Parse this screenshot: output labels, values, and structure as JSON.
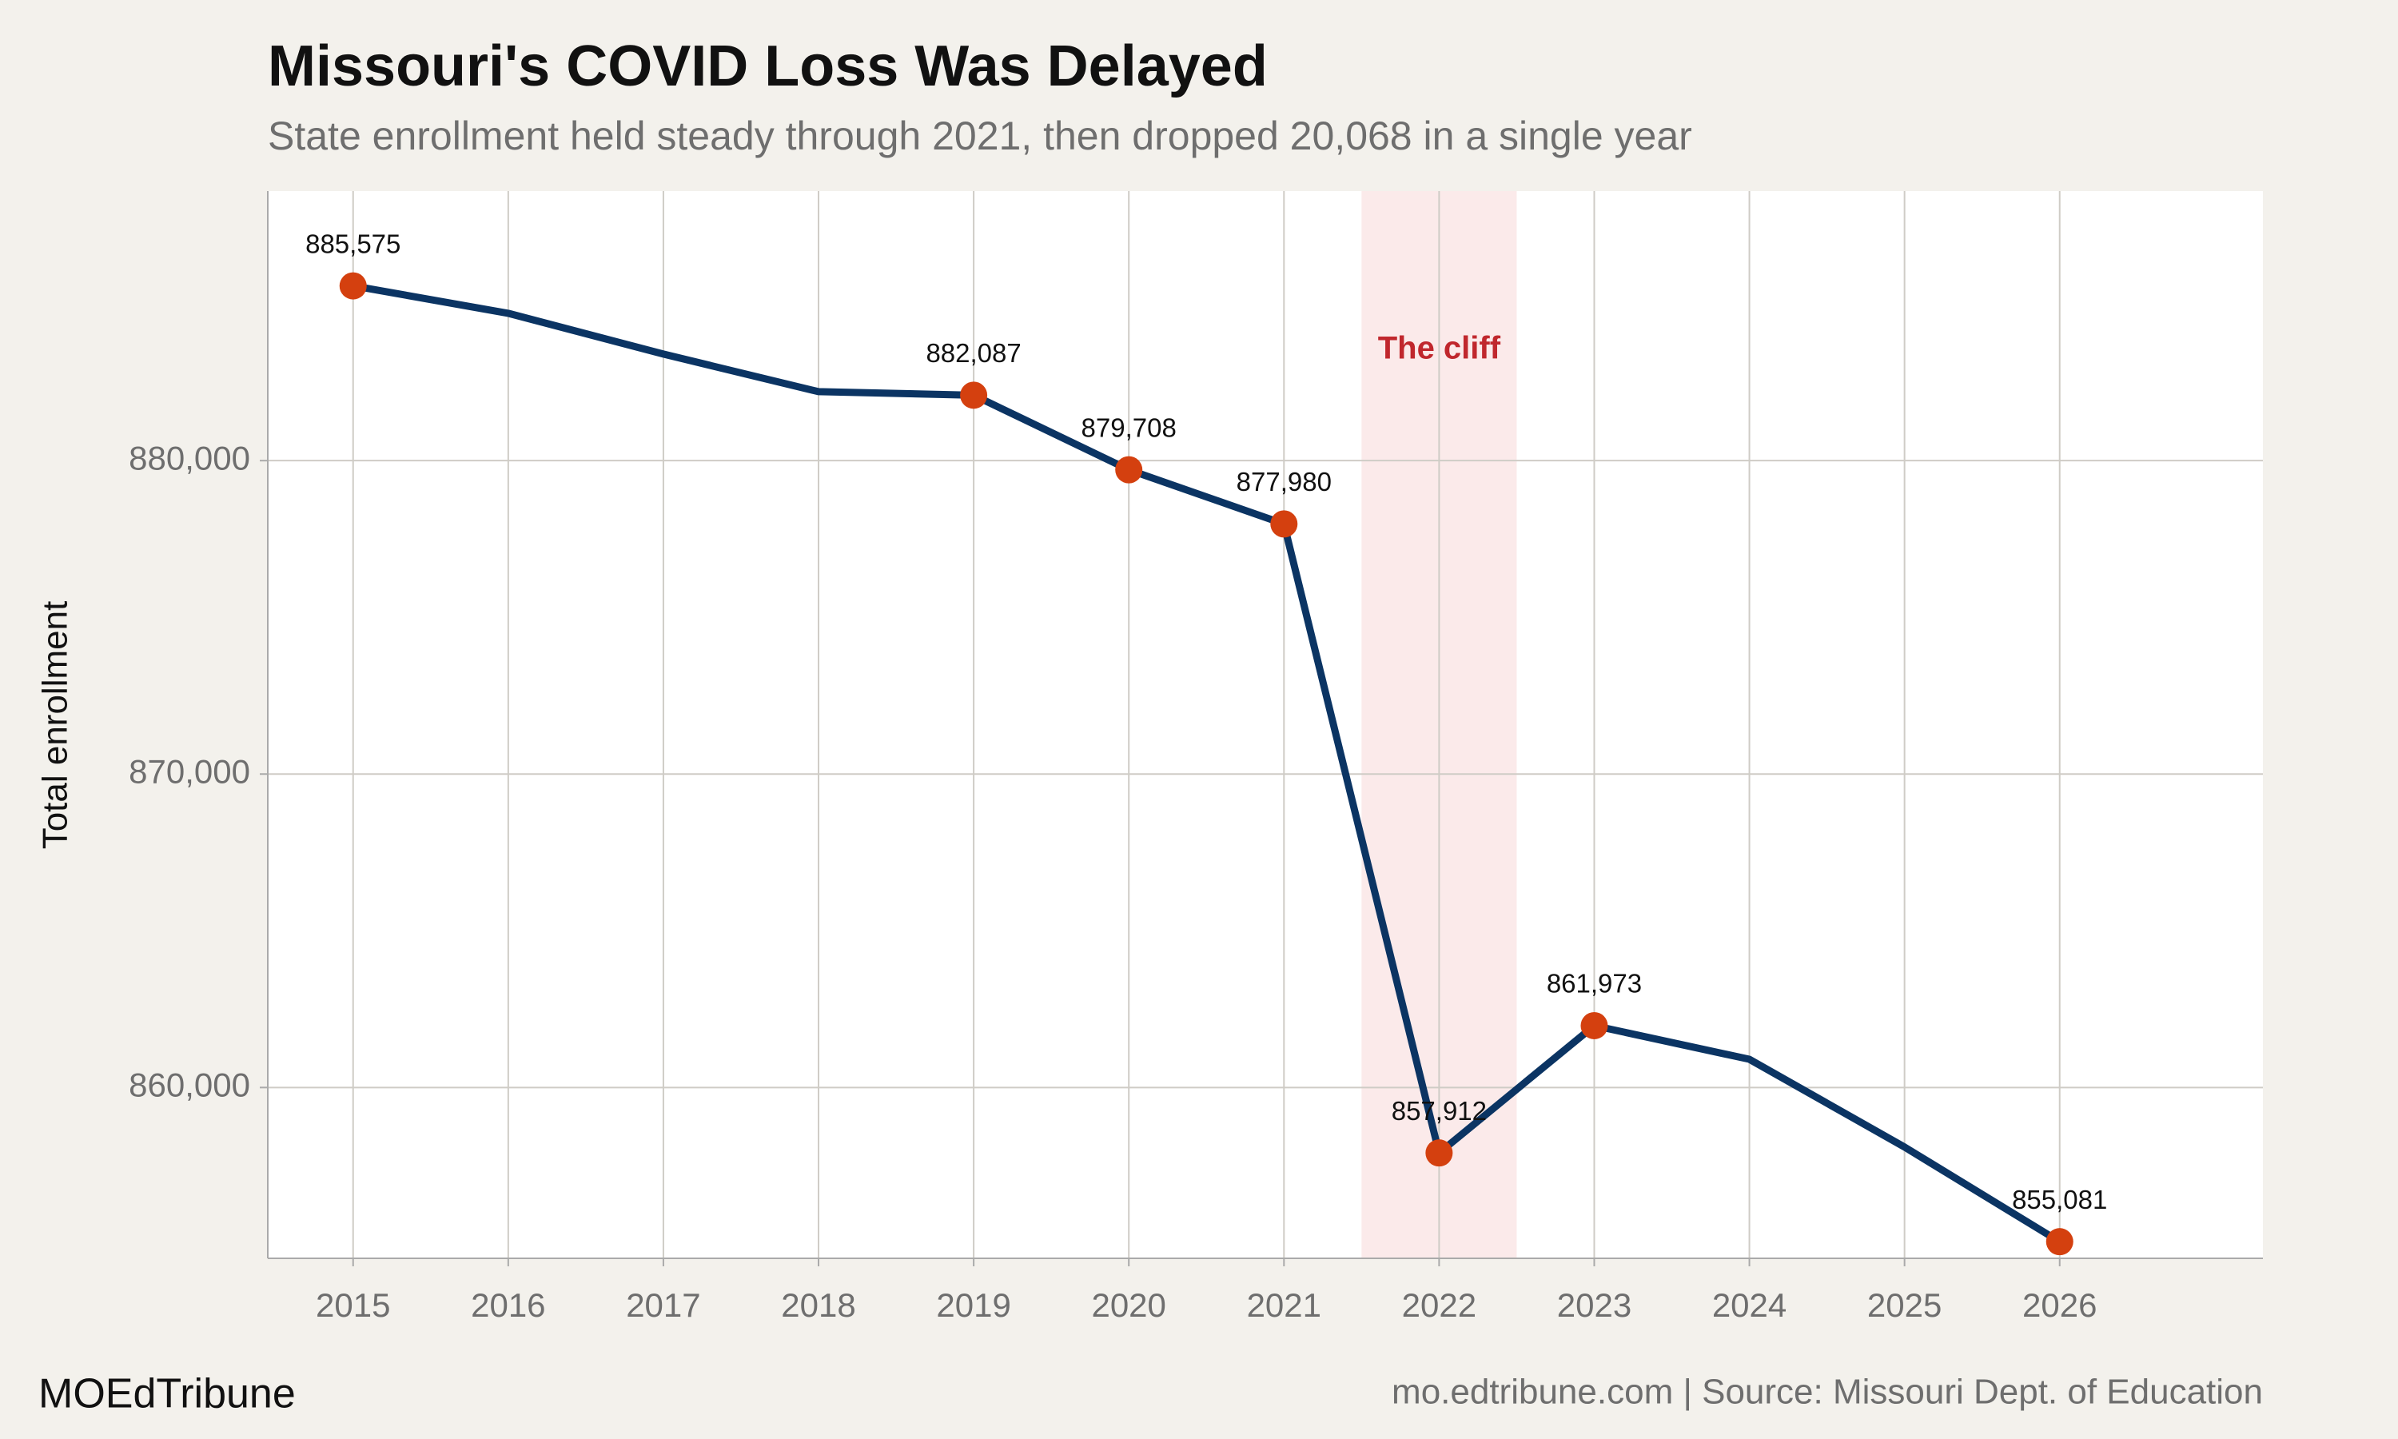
{
  "chart_data": {
    "type": "line",
    "title": "Missouri's COVID Loss Was Delayed",
    "subtitle": "State enrollment held steady through 2021, then dropped 20,068 in a single year",
    "y_label": "Total enrollment",
    "x": [
      2015,
      2016,
      2017,
      2018,
      2019,
      2020,
      2021,
      2022,
      2023,
      2024,
      2025,
      2026
    ],
    "series": [
      {
        "name": "Total enrollment",
        "color": "#0b3463",
        "values": [
          885575,
          884700,
          883400,
          882200,
          882087,
          879708,
          877980,
          857912,
          861973,
          860900,
          858100,
          855081
        ],
        "value_labels": [
          "885,575",
          null,
          null,
          null,
          "882,087",
          "879,708",
          "877,980",
          "857,912",
          "861,973",
          null,
          null,
          "855,081"
        ]
      }
    ],
    "marker_color": "#d4400f",
    "xlim": [
      2014.45,
      2027.31
    ],
    "xticks": [
      2015,
      2016,
      2017,
      2018,
      2019,
      2020,
      2021,
      2022,
      2023,
      2024,
      2025,
      2026
    ],
    "ylim": [
      854550,
      888600
    ],
    "yticks": [
      {
        "value": 860000,
        "label": "860,000"
      },
      {
        "value": 870000,
        "label": "870,000"
      },
      {
        "value": 880000,
        "label": "880,000"
      }
    ],
    "grid": true,
    "highlight": {
      "text": "The cliff",
      "from": 2021.5,
      "to": 2022.5,
      "color": "#fbeaea",
      "text_color": "#c0272d"
    },
    "footer_left": "MOEdTribune",
    "footer_right": "mo.edtribune.com | Source: Missouri Dept. of Education"
  }
}
